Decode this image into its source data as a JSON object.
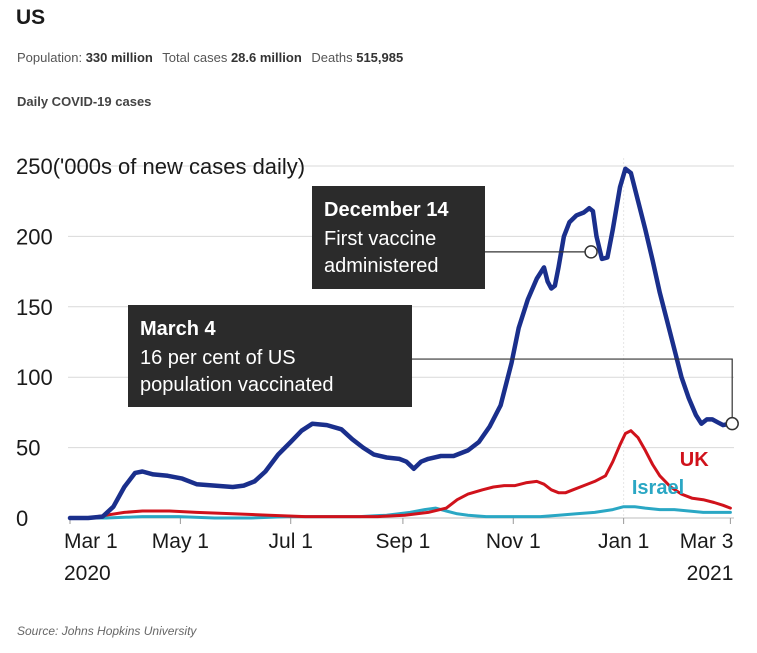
{
  "header": {
    "title": "US",
    "population_label": "Population:",
    "population_value": "330 million",
    "cases_label": "Total cases",
    "cases_value": "28.6 million",
    "deaths_label": "Deaths",
    "deaths_value": "515,985",
    "subtitle": "Daily COVID-19 cases"
  },
  "source": "Source: Johns Hopkins University",
  "chart_data": {
    "type": "line",
    "title": "Daily COVID-19 cases",
    "ylabel": "('000s of new cases daily)",
    "ylim": [
      0,
      250
    ],
    "yticks": [
      0,
      50,
      100,
      150,
      200,
      250
    ],
    "ytick_top_label": "250('000s of new cases daily)",
    "xlim": [
      0,
      367
    ],
    "xticks": [
      {
        "day": 0,
        "label": "Mar 1",
        "year": "2020"
      },
      {
        "day": 61,
        "label": "May 1",
        "year": ""
      },
      {
        "day": 122,
        "label": "Jul 1",
        "year": ""
      },
      {
        "day": 184,
        "label": "Sep 1",
        "year": ""
      },
      {
        "day": 245,
        "label": "Nov 1",
        "year": ""
      },
      {
        "day": 306,
        "label": "Jan 1",
        "year": ""
      },
      {
        "day": 365,
        "label": "Mar 3",
        "year": "2021"
      }
    ],
    "series": [
      {
        "name": "US",
        "color": "#1a2f8c",
        "labeled": false,
        "points": [
          [
            0,
            0
          ],
          [
            10,
            0
          ],
          [
            18,
            1
          ],
          [
            24,
            8
          ],
          [
            30,
            22
          ],
          [
            36,
            32
          ],
          [
            40,
            33
          ],
          [
            46,
            31
          ],
          [
            54,
            30
          ],
          [
            62,
            28
          ],
          [
            70,
            24
          ],
          [
            80,
            23
          ],
          [
            90,
            22
          ],
          [
            96,
            23
          ],
          [
            102,
            26
          ],
          [
            108,
            33
          ],
          [
            115,
            45
          ],
          [
            122,
            54
          ],
          [
            128,
            62
          ],
          [
            134,
            67
          ],
          [
            142,
            66
          ],
          [
            150,
            63
          ],
          [
            156,
            56
          ],
          [
            162,
            50
          ],
          [
            168,
            45
          ],
          [
            175,
            43
          ],
          [
            182,
            42
          ],
          [
            186,
            40
          ],
          [
            190,
            35
          ],
          [
            194,
            40
          ],
          [
            198,
            42
          ],
          [
            205,
            44
          ],
          [
            212,
            44
          ],
          [
            220,
            48
          ],
          [
            226,
            54
          ],
          [
            232,
            65
          ],
          [
            238,
            80
          ],
          [
            244,
            110
          ],
          [
            248,
            135
          ],
          [
            253,
            155
          ],
          [
            258,
            170
          ],
          [
            262,
            178
          ],
          [
            264,
            168
          ],
          [
            266,
            163
          ],
          [
            268,
            165
          ],
          [
            270,
            178
          ],
          [
            273,
            200
          ],
          [
            276,
            210
          ],
          [
            280,
            215
          ],
          [
            284,
            217
          ],
          [
            287,
            220
          ],
          [
            289,
            218
          ],
          [
            291,
            200
          ],
          [
            294,
            184
          ],
          [
            297,
            185
          ],
          [
            300,
            205
          ],
          [
            304,
            235
          ],
          [
            307,
            248
          ],
          [
            310,
            245
          ],
          [
            314,
            225
          ],
          [
            318,
            205
          ],
          [
            322,
            183
          ],
          [
            326,
            160
          ],
          [
            330,
            140
          ],
          [
            334,
            120
          ],
          [
            338,
            100
          ],
          [
            342,
            85
          ],
          [
            346,
            73
          ],
          [
            349,
            67
          ],
          [
            352,
            70
          ],
          [
            355,
            70
          ],
          [
            358,
            68
          ],
          [
            361,
            66
          ],
          [
            365,
            67
          ]
        ]
      },
      {
        "name": "UK",
        "color": "#d0121b",
        "labeled": true,
        "points": [
          [
            0,
            0
          ],
          [
            10,
            0
          ],
          [
            20,
            2
          ],
          [
            30,
            4
          ],
          [
            40,
            5
          ],
          [
            55,
            5
          ],
          [
            70,
            4
          ],
          [
            90,
            3
          ],
          [
            110,
            2
          ],
          [
            130,
            1
          ],
          [
            150,
            1
          ],
          [
            170,
            1
          ],
          [
            185,
            2
          ],
          [
            198,
            4
          ],
          [
            208,
            7
          ],
          [
            214,
            13
          ],
          [
            220,
            17
          ],
          [
            228,
            20
          ],
          [
            234,
            22
          ],
          [
            240,
            23
          ],
          [
            246,
            23
          ],
          [
            252,
            25
          ],
          [
            258,
            26
          ],
          [
            262,
            24
          ],
          [
            266,
            20
          ],
          [
            270,
            18
          ],
          [
            274,
            18
          ],
          [
            278,
            20
          ],
          [
            284,
            23
          ],
          [
            290,
            26
          ],
          [
            296,
            30
          ],
          [
            300,
            40
          ],
          [
            304,
            52
          ],
          [
            307,
            60
          ],
          [
            310,
            62
          ],
          [
            314,
            57
          ],
          [
            318,
            48
          ],
          [
            322,
            38
          ],
          [
            326,
            30
          ],
          [
            332,
            22
          ],
          [
            338,
            17
          ],
          [
            344,
            14
          ],
          [
            350,
            13
          ],
          [
            356,
            11
          ],
          [
            361,
            9
          ],
          [
            365,
            7
          ]
        ]
      },
      {
        "name": "Israel",
        "color": "#2aa7c4",
        "labeled": true,
        "points": [
          [
            0,
            0
          ],
          [
            20,
            0
          ],
          [
            40,
            1
          ],
          [
            60,
            1
          ],
          [
            80,
            0
          ],
          [
            100,
            0
          ],
          [
            120,
            1
          ],
          [
            140,
            1
          ],
          [
            160,
            1
          ],
          [
            175,
            2
          ],
          [
            188,
            4
          ],
          [
            196,
            6
          ],
          [
            202,
            7
          ],
          [
            208,
            5
          ],
          [
            214,
            3
          ],
          [
            220,
            2
          ],
          [
            230,
            1
          ],
          [
            240,
            1
          ],
          [
            250,
            1
          ],
          [
            260,
            1
          ],
          [
            270,
            2
          ],
          [
            280,
            3
          ],
          [
            290,
            4
          ],
          [
            300,
            6
          ],
          [
            306,
            8
          ],
          [
            312,
            8
          ],
          [
            318,
            7
          ],
          [
            326,
            6
          ],
          [
            334,
            6
          ],
          [
            342,
            5
          ],
          [
            350,
            4
          ],
          [
            358,
            4
          ],
          [
            365,
            4
          ]
        ]
      }
    ],
    "series_labels": [
      {
        "name": "UK",
        "text": "UK",
        "day": 345,
        "value": 37
      },
      {
        "name": "Israel",
        "text": "Israel",
        "day": 325,
        "value": 17
      }
    ],
    "annotations": [
      {
        "date": "December 14",
        "text_lines": [
          "First vaccine",
          "administered"
        ],
        "day": 288,
        "value": 189
      },
      {
        "date": "March 4",
        "text_lines": [
          "16 per cent of US",
          "population vaccinated"
        ],
        "day": 366,
        "value": 67
      }
    ]
  }
}
